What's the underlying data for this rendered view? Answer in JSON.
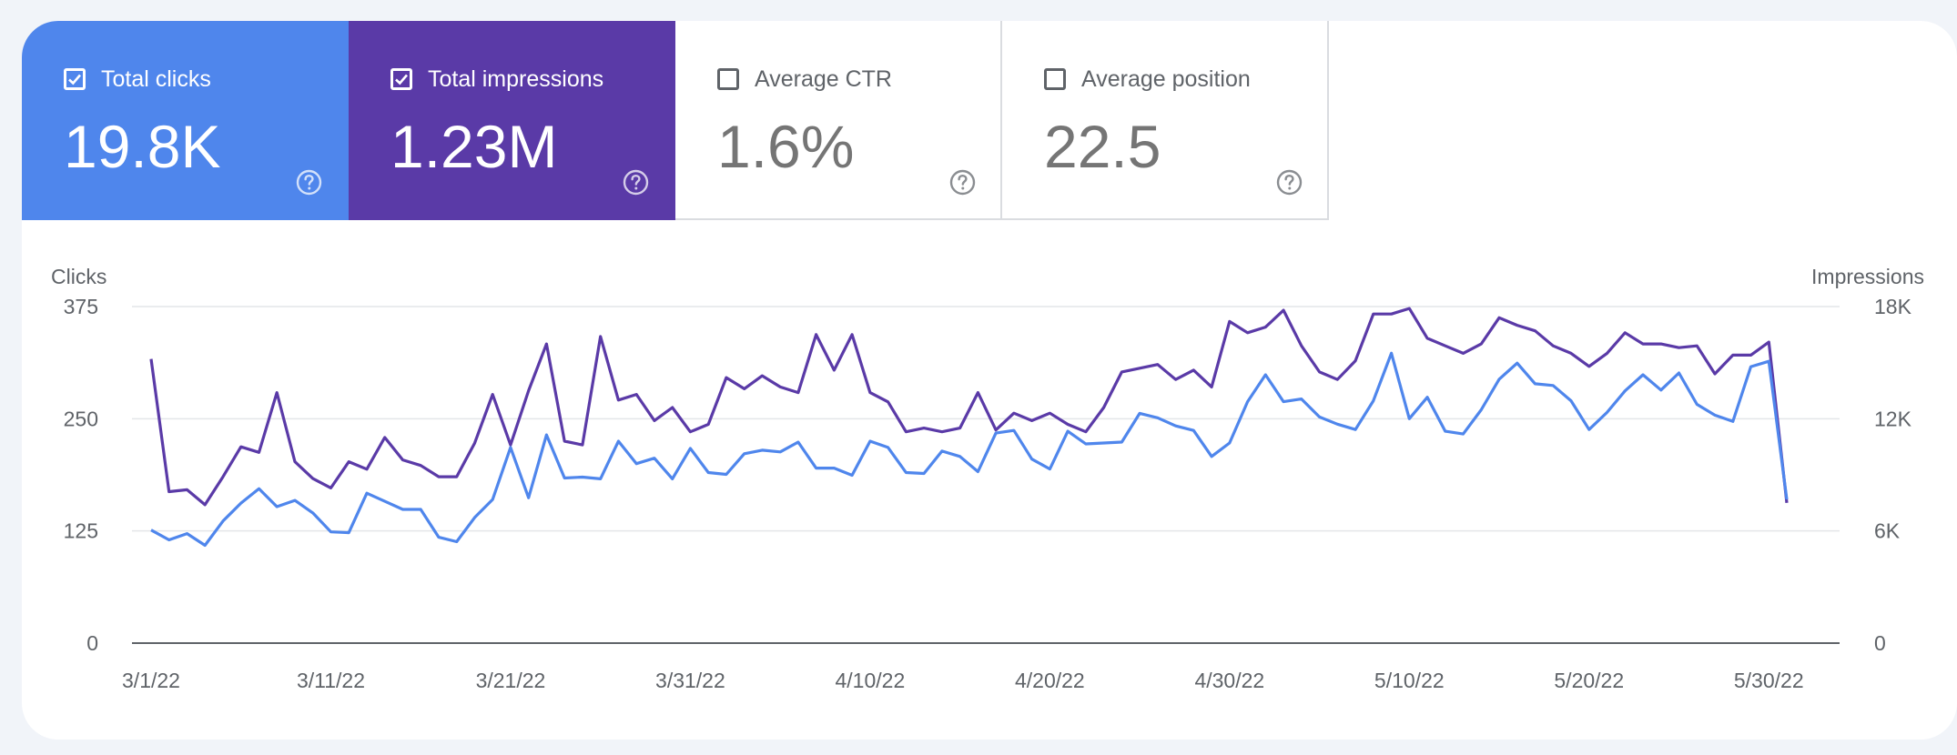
{
  "metrics": [
    {
      "label": "Total clicks",
      "value": "19.8K",
      "checked": true,
      "color": "#4f86ec"
    },
    {
      "label": "Total impressions",
      "value": "1.23M",
      "checked": true,
      "color": "#5a3aa7"
    },
    {
      "label": "Average CTR",
      "value": "1.6%",
      "checked": false,
      "color": "#ffffff"
    },
    {
      "label": "Average position",
      "value": "22.5",
      "checked": false,
      "color": "#ffffff"
    }
  ],
  "chart_data": {
    "type": "line",
    "left_axis_label": "Clicks",
    "right_axis_label": "Impressions",
    "left_ylim": [
      0,
      375
    ],
    "right_ylim": [
      0,
      18000
    ],
    "left_ticks": [
      {
        "value": 0,
        "label": "0"
      },
      {
        "value": 125,
        "label": "125"
      },
      {
        "value": 250,
        "label": "250"
      },
      {
        "value": 375,
        "label": "375"
      }
    ],
    "right_ticks": [
      {
        "value": 0,
        "label": "0"
      },
      {
        "value": 6000,
        "label": "6K"
      },
      {
        "value": 12000,
        "label": "12K"
      },
      {
        "value": 18000,
        "label": "18K"
      }
    ],
    "x_tick_labels": [
      "3/1/22",
      "3/11/22",
      "3/21/22",
      "3/31/22",
      "4/10/22",
      "4/20/22",
      "4/30/22",
      "5/10/22",
      "5/20/22",
      "5/30/22"
    ],
    "x_tick_day_index": [
      0,
      10,
      20,
      30,
      40,
      50,
      60,
      70,
      80,
      90
    ],
    "grid": true,
    "series": [
      {
        "name": "Total clicks",
        "axis": "left",
        "color": "#4f86ec",
        "values": [
          126,
          115,
          122,
          109,
          136,
          156,
          172,
          152,
          159,
          145,
          124,
          123,
          167,
          158,
          149,
          149,
          118,
          113,
          140,
          160,
          218,
          162,
          232,
          184,
          185,
          183,
          225,
          200,
          206,
          183,
          217,
          190,
          188,
          211,
          215,
          213,
          224,
          195,
          195,
          187,
          225,
          218,
          190,
          189,
          214,
          208,
          191,
          234,
          237,
          205,
          194,
          236,
          222,
          223,
          224,
          256,
          251,
          242,
          237,
          208,
          223,
          269,
          299,
          269,
          272,
          252,
          244,
          238,
          270,
          323,
          250,
          274,
          236,
          233,
          260,
          294,
          312,
          289,
          287,
          270,
          238,
          257,
          281,
          299,
          282,
          301,
          266,
          254,
          247,
          308,
          314,
          160
        ]
      },
      {
        "name": "Total impressions",
        "axis": "right",
        "color": "#5a3aa7",
        "values": [
          15200,
          8100,
          8200,
          7400,
          8900,
          10500,
          10200,
          13400,
          9700,
          8800,
          8300,
          9700,
          9300,
          11000,
          9800,
          9500,
          8900,
          8900,
          10700,
          13300,
          10600,
          13500,
          16000,
          10800,
          10600,
          16400,
          13000,
          13300,
          11900,
          12600,
          11300,
          11700,
          14200,
          13600,
          14300,
          13700,
          13400,
          16500,
          14600,
          16500,
          13400,
          12900,
          11300,
          11500,
          11300,
          11500,
          13400,
          11400,
          12300,
          11900,
          12300,
          11700,
          11300,
          12600,
          14500,
          14700,
          14900,
          14100,
          14600,
          13700,
          17200,
          16600,
          16900,
          17800,
          15900,
          14500,
          14100,
          15100,
          17600,
          17600,
          17900,
          16300,
          15900,
          15500,
          16000,
          17400,
          17000,
          16700,
          15900,
          15500,
          14800,
          15500,
          16600,
          16000,
          16000,
          15800,
          15900,
          14400,
          15400,
          15400,
          16100,
          7500
        ]
      }
    ]
  }
}
